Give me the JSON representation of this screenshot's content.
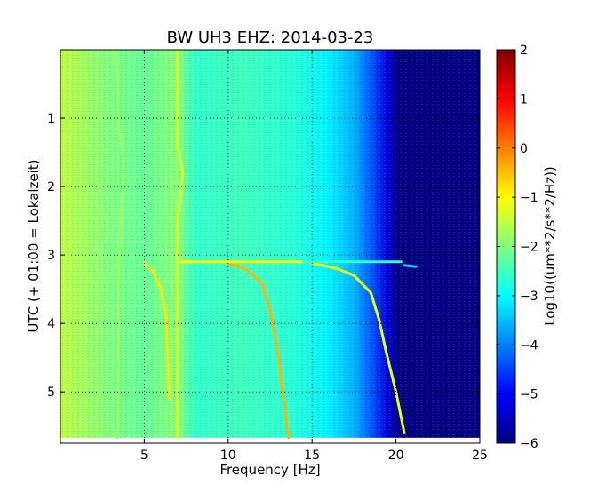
{
  "chart_data": {
    "type": "heatmap",
    "title": "BW UH3 EHZ: 2014-03-23",
    "xlabel": "Frequency [Hz]",
    "ylabel": "UTC (+ 01:00 = Lokalzeit)",
    "xlim": [
      0,
      25
    ],
    "ylim": [
      5.75,
      0
    ],
    "x_ticks": [
      "5",
      "10",
      "15",
      "20",
      "25"
    ],
    "x_tick_values": [
      5,
      10,
      15,
      20,
      25
    ],
    "y_ticks": [
      "1",
      "2",
      "3",
      "4",
      "5"
    ],
    "y_tick_values": [
      1,
      2,
      3,
      4,
      5
    ],
    "colorbar": {
      "label": "Log10((um**2/s**2/Hz))",
      "range": [
        -6,
        2
      ],
      "ticks": [
        "2",
        "1",
        "0",
        "−1",
        "−2",
        "−3",
        "−4",
        "−5",
        "−6"
      ],
      "tick_values": [
        2,
        1,
        0,
        -1,
        -2,
        -3,
        -4,
        -5,
        -6
      ],
      "colormap": "jet"
    },
    "grid": true,
    "data_end_utc": 5.67,
    "background_level_by_frequency": [
      {
        "hz": 0,
        "level": -1.5
      },
      {
        "hz": 3,
        "level": -2.0
      },
      {
        "hz": 5,
        "level": -2.2
      },
      {
        "hz": 7,
        "level": -1.9
      },
      {
        "hz": 8,
        "level": -2.6
      },
      {
        "hz": 11,
        "level": -2.5
      },
      {
        "hz": 14,
        "level": -2.7
      },
      {
        "hz": 16,
        "level": -3.1
      },
      {
        "hz": 17.5,
        "level": -3.6
      },
      {
        "hz": 18.5,
        "level": -4.3
      },
      {
        "hz": 19.5,
        "level": -5.3
      },
      {
        "hz": 20.2,
        "level": -6.0
      },
      {
        "hz": 25,
        "level": -6.0
      }
    ],
    "features": [
      {
        "name": "band-3.5hz",
        "level": -1.8,
        "points": [
          [
            3.3,
            0
          ],
          [
            3.5,
            1.2
          ],
          [
            3.8,
            1.6
          ],
          [
            3.5,
            3.0
          ],
          [
            3.4,
            5.67
          ]
        ]
      },
      {
        "name": "band-7hz",
        "level": -1.3,
        "points": [
          [
            7.0,
            0
          ],
          [
            7.0,
            1.4
          ],
          [
            7.3,
            1.8
          ],
          [
            7.0,
            2.5
          ],
          [
            7.0,
            5.67
          ]
        ]
      },
      {
        "name": "sweep-1",
        "level": -0.8,
        "points": [
          [
            5.0,
            3.12
          ],
          [
            5.5,
            3.22
          ],
          [
            6.0,
            3.5
          ],
          [
            6.3,
            3.9
          ],
          [
            6.4,
            4.4
          ],
          [
            6.5,
            5.1
          ]
        ]
      },
      {
        "name": "sweep-2",
        "level": -0.4,
        "points": [
          [
            10.0,
            3.12
          ],
          [
            11.0,
            3.2
          ],
          [
            12.0,
            3.4
          ],
          [
            12.5,
            3.8
          ],
          [
            12.9,
            4.3
          ],
          [
            13.2,
            4.9
          ],
          [
            13.6,
            5.67
          ]
        ]
      },
      {
        "name": "sweep-3",
        "level": -1.2,
        "points": [
          [
            15.0,
            3.12
          ],
          [
            16.5,
            3.2
          ],
          [
            17.5,
            3.3
          ],
          [
            18.5,
            3.55
          ],
          [
            19.0,
            3.95
          ],
          [
            19.4,
            4.4
          ],
          [
            20.0,
            5.0
          ],
          [
            20.5,
            5.6
          ]
        ]
      },
      {
        "name": "horizontal-line-3.1",
        "level": -1.0,
        "points": [
          [
            7.2,
            3.1
          ],
          [
            14.5,
            3.1
          ]
        ]
      },
      {
        "name": "horizontal-line-3.1b",
        "level": -2.6,
        "points": [
          [
            14.5,
            3.1
          ],
          [
            20.3,
            3.1
          ]
        ]
      },
      {
        "name": "blip-3.15",
        "level": -3.4,
        "points": [
          [
            20.5,
            3.15
          ],
          [
            21.2,
            3.17
          ]
        ]
      }
    ]
  }
}
